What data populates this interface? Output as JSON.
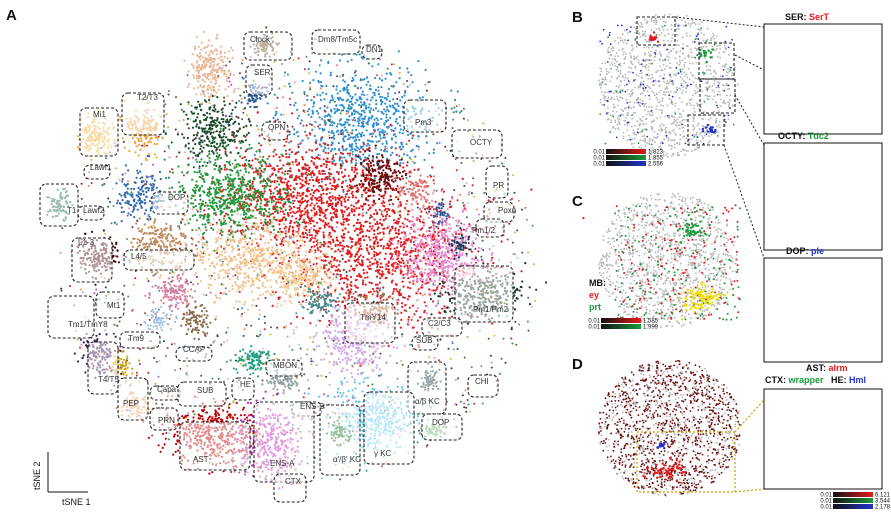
{
  "panels": {
    "A": "A",
    "B": "B",
    "C": "C",
    "D": "D"
  },
  "axes": {
    "x": "tSNE 1",
    "y": "tSNE 2"
  },
  "colors": {
    "background_cells": "#b4b4b4",
    "red": "#e41a1c",
    "green": "#1a9a3a",
    "blue": "#2233cc",
    "dark_red": "#6b0a0a",
    "yellow": "#f0e000"
  },
  "chart_data": [
    {
      "type": "scatter",
      "panel": "A",
      "xlabel": "tSNE 1",
      "ylabel": "tSNE 2",
      "cluster_labels": [
        "Clock",
        "Dm8/Tm5c",
        "DN1",
        "SER",
        "Pm3",
        "OCTY",
        "T2/T3",
        "Mi1",
        "OPN",
        "Lawf1",
        "T1",
        "Lawf2",
        "DOP",
        "PR",
        "Poxn",
        "L1-3",
        "L4/5",
        "Pm1/2",
        "Pm1/Pm2",
        "Mt1",
        "Tm1/TmY8",
        "Tm9",
        "TmY14",
        "C2/C3",
        "SUB",
        "CCAP",
        "T4/T5",
        "PEP",
        "Capa",
        "SUB",
        "HE",
        "MBON",
        "CHI",
        "α/β KC",
        "ENS-B",
        "PRN",
        "AST",
        "ENS-A",
        "α'/β' KC",
        "γ KC",
        "DOP",
        "CTX"
      ]
    },
    {
      "type": "scatter",
      "panel": "B",
      "gene_panels": [
        {
          "cell_type": "SER",
          "gene": "SerT",
          "gene_color": "#e41a1c"
        },
        {
          "cell_type": "OCTY",
          "gene": "Tdc2",
          "gene_color": "#1a9a3a"
        },
        {
          "cell_type": "DOP",
          "gene": "ple",
          "gene_color": "#2233cc"
        }
      ],
      "colorbars": [
        {
          "min": "0.01",
          "max": "1.823",
          "color": "#e41a1c"
        },
        {
          "min": "0.01",
          "max": "1.855",
          "color": "#1a9a3a"
        },
        {
          "min": "0.01",
          "max": "2.556",
          "color": "#2233cc"
        }
      ]
    },
    {
      "type": "scatter",
      "panel": "C",
      "legend_title": "MB:",
      "genes": [
        {
          "name": "ey",
          "color": "#e41a1c"
        },
        {
          "name": "prt",
          "color": "#1a9a3a"
        }
      ],
      "colorbars": [
        {
          "min": "0.01",
          "max": "1.585",
          "color": "#e41a1c"
        },
        {
          "min": "0.01",
          "max": "1.999",
          "color": "#1a9a3a"
        }
      ]
    },
    {
      "type": "scatter",
      "panel": "D",
      "gene_panels": [
        {
          "cell_type": "AST",
          "gene": "alrm",
          "gene_color": "#e41a1c"
        },
        {
          "cell_type": "CTX",
          "gene": "wrapper",
          "gene_color": "#1a9a3a"
        },
        {
          "cell_type": "HE",
          "gene": "Hml",
          "gene_color": "#2233cc"
        }
      ],
      "colorbars": [
        {
          "min": "0.01",
          "max": "6.121",
          "color": "#e41a1c"
        },
        {
          "min": "0.01",
          "max": "3.544",
          "color": "#1a9a3a"
        },
        {
          "min": "0.01",
          "max": "2.178",
          "color": "#2233cc"
        }
      ]
    }
  ]
}
